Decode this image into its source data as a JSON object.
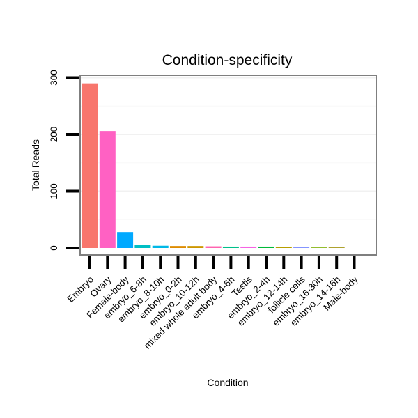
{
  "chart_data": {
    "type": "bar",
    "title": "Condition-specificity",
    "xlabel": "Condition",
    "ylabel": "Total Reads",
    "ylim": [
      0,
      305
    ],
    "yticks": [
      0,
      100,
      200,
      300
    ],
    "grid": true,
    "legend": "none",
    "categories": [
      "Embryo",
      "Ovary",
      "Female-body",
      "embryo_6-8h",
      "embryo_8-10h",
      "embryo_0-2h",
      "embryo_10-12h",
      "mixed whole adult body",
      "embryo_4-6h",
      "Testis",
      "embryo_2-4h",
      "embryo_12-14h",
      "follicle cells",
      "embryo_16-30h",
      "embryo_14-16h",
      "Male-body"
    ],
    "values": [
      290,
      206,
      28,
      5,
      4,
      3.5,
      3.5,
      3,
      2.5,
      2.5,
      2.5,
      2,
      2,
      1,
      1,
      0
    ],
    "colors": [
      "#F8766D",
      "#FF61C3",
      "#00A9FF",
      "#00BFC4",
      "#00B8E7",
      "#DE8C00",
      "#CD9600",
      "#FF64B0",
      "#00C08B",
      "#F564E3",
      "#00BA38",
      "#B79F00",
      "#8494FF",
      "#7CAE00",
      "#9C8D00",
      "#C77CFF"
    ]
  }
}
